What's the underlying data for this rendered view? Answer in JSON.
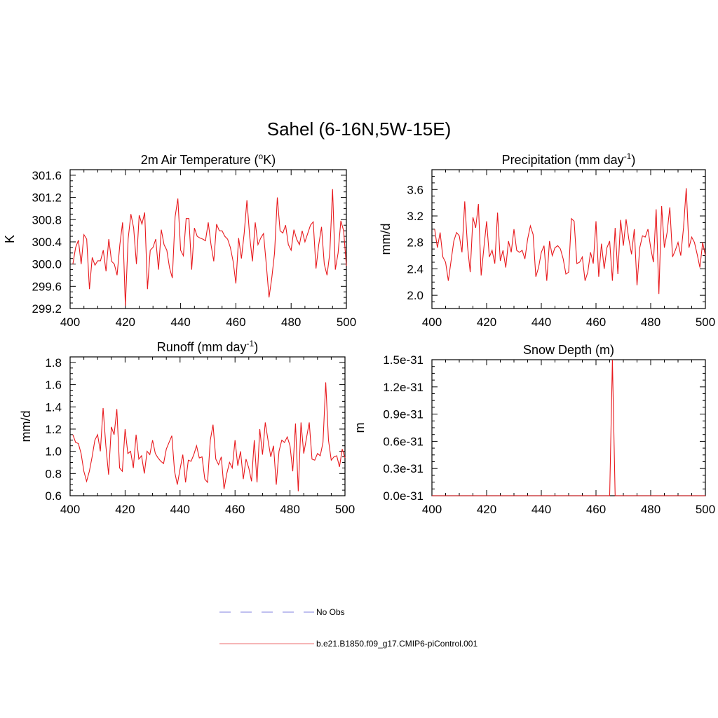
{
  "title": "Sahel (6-16N,5W-15E)",
  "colors": {
    "model": "#e8191d",
    "obs": "#9a9ae8",
    "axis": "#000000"
  },
  "legend": {
    "items": [
      {
        "label": "No Obs",
        "style": "dashed",
        "color": "#9a9ae8"
      },
      {
        "label": "b.e21.B1850.f09_g17.CMIP6-piControl.001",
        "style": "solid",
        "color": "#f08a8c"
      }
    ]
  },
  "chart_data": [
    {
      "type": "line",
      "title": "2m Air Temperature (oK)",
      "title_parts": {
        "main": "2m Air Temperature (",
        "sup": "o",
        "end": "K)"
      },
      "xlabel": "",
      "ylabel": "K",
      "xlim": [
        400,
        500
      ],
      "ylim": [
        299.2,
        301.7
      ],
      "xticks": [
        400,
        420,
        440,
        460,
        480,
        500
      ],
      "yticks": [
        299.2,
        299.6,
        300.0,
        300.4,
        300.8,
        301.2,
        301.6
      ],
      "ytick_labels": [
        "299.2",
        "299.6",
        "300.0",
        "300.4",
        "300.8",
        "301.2",
        "301.6"
      ],
      "series": [
        {
          "name": "b.e21.B1850.f09_g17.CMIP6-piControl.001",
          "x_start": 401,
          "values": [
            300.0,
            300.3,
            300.43,
            300.0,
            300.53,
            300.45,
            299.55,
            300.12,
            299.98,
            300.06,
            300.06,
            300.25,
            299.87,
            300.45,
            300.05,
            300.0,
            299.8,
            300.35,
            300.75,
            299.25,
            300.45,
            300.9,
            300.65,
            300.0,
            300.88,
            300.72,
            300.93,
            299.55,
            300.25,
            300.3,
            300.45,
            299.9,
            300.62,
            300.35,
            300.25,
            299.93,
            299.75,
            300.85,
            301.18,
            300.25,
            300.15,
            300.82,
            300.82,
            299.9,
            300.65,
            300.5,
            300.47,
            300.45,
            300.42,
            300.75,
            300.35,
            300.05,
            300.72,
            300.6,
            300.6,
            300.5,
            300.45,
            300.3,
            300.05,
            299.65,
            300.47,
            300.1,
            300.55,
            301.15,
            300.5,
            300.05,
            300.75,
            300.35,
            300.47,
            300.55,
            300.0,
            299.4,
            299.75,
            300.2,
            301.2,
            300.6,
            300.56,
            300.7,
            300.35,
            300.25,
            300.62,
            300.45,
            300.35,
            300.6,
            300.4,
            300.55,
            300.7,
            300.76,
            299.92,
            300.35,
            300.67,
            300.0,
            299.8,
            300.2,
            301.35,
            299.9,
            300.2,
            300.78,
            300.6,
            299.97
          ]
        }
      ]
    },
    {
      "type": "line",
      "title": "Precipitation (mm day-1)",
      "title_parts": {
        "main": "Precipitation (mm day",
        "sup": "-1",
        "end": ")"
      },
      "xlabel": "",
      "ylabel": "mm/d",
      "xlim": [
        400,
        500
      ],
      "ylim": [
        1.8,
        3.9
      ],
      "xticks": [
        400,
        420,
        440,
        460,
        480,
        500
      ],
      "yticks": [
        2.0,
        2.4,
        2.8,
        3.2,
        3.6
      ],
      "ytick_labels": [
        "2.0",
        "2.4",
        "2.8",
        "3.2",
        "3.6"
      ],
      "series": [
        {
          "name": "b.e21.B1850.f09_g17.CMIP6-piControl.001",
          "x_start": 401,
          "values": [
            3.0,
            2.72,
            2.95,
            2.58,
            2.5,
            2.22,
            2.52,
            2.82,
            2.95,
            2.9,
            2.65,
            3.42,
            2.75,
            2.35,
            3.18,
            3.02,
            3.38,
            2.3,
            2.72,
            3.12,
            2.58,
            2.68,
            2.48,
            3.25,
            2.52,
            2.68,
            2.42,
            2.82,
            2.65,
            3.0,
            2.68,
            2.65,
            2.68,
            2.55,
            2.85,
            3.05,
            2.92,
            2.28,
            2.42,
            2.65,
            2.75,
            2.22,
            2.82,
            2.6,
            2.72,
            2.75,
            2.7,
            2.55,
            2.32,
            2.35,
            3.16,
            3.12,
            2.48,
            2.5,
            2.58,
            2.22,
            2.35,
            2.65,
            2.48,
            3.12,
            2.28,
            2.78,
            2.4,
            2.72,
            2.82,
            2.22,
            3.02,
            2.32,
            3.14,
            2.75,
            3.15,
            2.85,
            2.62,
            3.0,
            2.15,
            2.72,
            2.9,
            2.88,
            3.0,
            2.72,
            2.5,
            3.3,
            2.02,
            3.35,
            2.72,
            2.95,
            3.33,
            2.58,
            2.68,
            2.8,
            2.6,
            3.02,
            3.62,
            2.72,
            2.88,
            2.8,
            2.62,
            2.42,
            2.8,
            2.6
          ]
        }
      ]
    },
    {
      "type": "line",
      "title": "Runoff (mm day-1)",
      "title_parts": {
        "main": "Runoff (mm day",
        "sup": "-1",
        "end": ")"
      },
      "xlabel": "",
      "ylabel": "mm/d",
      "xlim": [
        400,
        500
      ],
      "ylim": [
        0.6,
        1.85
      ],
      "xticks": [
        400,
        420,
        440,
        460,
        480,
        500
      ],
      "yticks": [
        0.6,
        0.8,
        1.0,
        1.2,
        1.4,
        1.6,
        1.8
      ],
      "ytick_labels": [
        "0.6",
        "0.8",
        "1.0",
        "1.2",
        "1.4",
        "1.6",
        "1.8"
      ],
      "series": [
        {
          "name": "b.e21.B1850.f09_g17.CMIP6-piControl.001",
          "x_start": 401,
          "values": [
            1.15,
            1.08,
            1.07,
            0.98,
            0.82,
            0.73,
            0.82,
            0.95,
            1.1,
            1.15,
            1.0,
            1.39,
            1.05,
            0.79,
            1.22,
            1.15,
            1.38,
            0.85,
            0.82,
            1.2,
            0.98,
            1.0,
            0.85,
            1.15,
            0.93,
            0.96,
            0.8,
            1.0,
            0.97,
            1.1,
            0.98,
            0.94,
            0.91,
            0.89,
            1.02,
            1.08,
            1.14,
            0.82,
            0.7,
            0.84,
            0.97,
            0.72,
            0.92,
            0.91,
            0.97,
            1.05,
            0.94,
            0.95,
            0.75,
            0.72,
            1.1,
            1.24,
            0.93,
            0.88,
            0.95,
            0.66,
            0.8,
            0.9,
            0.85,
            1.1,
            0.87,
            1.0,
            0.75,
            0.93,
            0.85,
            0.73,
            1.1,
            0.72,
            1.2,
            0.97,
            1.26,
            1.1,
            0.95,
            1.05,
            0.7,
            1.0,
            1.1,
            1.08,
            1.13,
            1.05,
            0.82,
            1.25,
            0.64,
            1.26,
            0.98,
            1.12,
            1.26,
            0.93,
            0.92,
            0.98,
            0.96,
            1.08,
            1.62,
            1.1,
            0.92,
            0.95,
            0.96,
            0.86,
            1.02,
            0.94
          ]
        }
      ]
    },
    {
      "type": "line",
      "title": "Snow Depth (m)",
      "title_parts": {
        "main": "Snow Depth (m)",
        "sup": "",
        "end": ""
      },
      "xlabel": "",
      "ylabel": "m",
      "xlim": [
        400,
        500
      ],
      "ylim": [
        0,
        1.5e-31
      ],
      "xticks": [
        400,
        420,
        440,
        460,
        480,
        500
      ],
      "yticks": [
        0,
        3e-32,
        6e-32,
        9e-32,
        1.2e-31,
        1.5e-31
      ],
      "ytick_labels": [
        "0.0e-31",
        "0.3e-31",
        "0.6e-31",
        "0.9e-31",
        "1.2e-31",
        "1.5e-31"
      ],
      "series": [
        {
          "name": "b.e21.B1850.f09_g17.CMIP6-piControl.001",
          "points": [
            [
              400,
              0
            ],
            [
              465,
              0
            ],
            [
              466,
              1.5e-31
            ],
            [
              467,
              0
            ],
            [
              500,
              0
            ]
          ]
        }
      ]
    }
  ]
}
